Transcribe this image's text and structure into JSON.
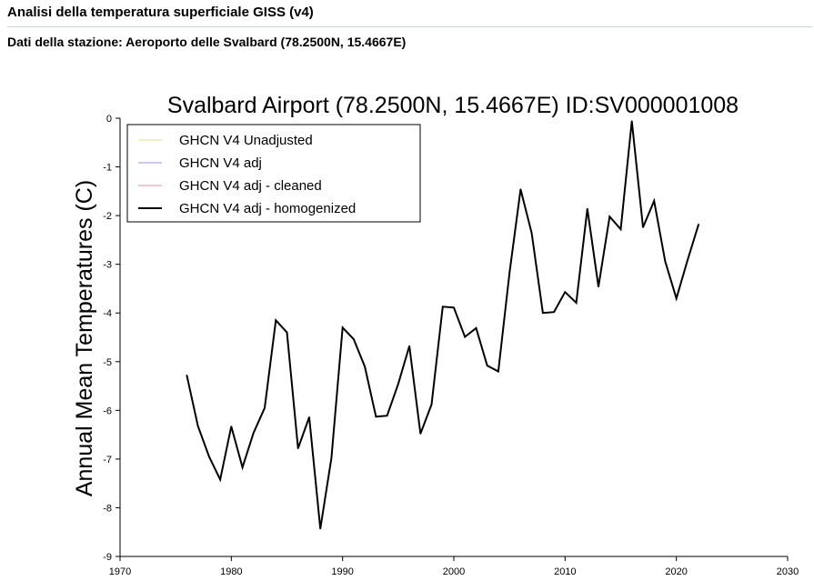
{
  "page": {
    "heading": "Analisi della temperatura superficiale GISS (v4)",
    "station_heading": "Dati della stazione: Aeroporto delle Svalbard (78.2500N, 15.4667E)"
  },
  "colors": {
    "unadjusted": "#f2efc0",
    "adj": "#c8c8f5",
    "adj_cleaned": "#f5c8c8",
    "homogenized": "#000000"
  },
  "chart_data": {
    "type": "line",
    "title": "Svalbard Airport (78.2500N, 15.4667E) ID:SV000001008",
    "xlabel": "",
    "ylabel": "Annual Mean Temperatures (C)",
    "xlim": [
      1970,
      2030
    ],
    "ylim": [
      -9,
      0
    ],
    "xticks": [
      1970,
      1980,
      1990,
      2000,
      2010,
      2020,
      2030
    ],
    "yticks": [
      0,
      -1,
      -2,
      -3,
      -4,
      -5,
      -6,
      -7,
      -8,
      -9
    ],
    "legend_position": "top-left",
    "legend": [
      {
        "name": "GHCN V4 Unadjusted",
        "color_key": "unadjusted"
      },
      {
        "name": "GHCN V4 adj",
        "color_key": "adj"
      },
      {
        "name": "GHCN V4 adj - cleaned",
        "color_key": "adj_cleaned"
      },
      {
        "name": "GHCN V4 adj - homogenized",
        "color_key": "homogenized"
      }
    ],
    "series": [
      {
        "name": "GHCN V4 adj - homogenized",
        "color_key": "homogenized",
        "x": [
          1976,
          1977,
          1978,
          1979,
          1980,
          1981,
          1982,
          1983,
          1984,
          1985,
          1986,
          1987,
          1988,
          1989,
          1990,
          1991,
          1992,
          1993,
          1994,
          1995,
          1996,
          1997,
          1998,
          1999,
          2000,
          2001,
          2002,
          2003,
          2004,
          2005,
          2006,
          2007,
          2008,
          2009,
          2010,
          2011,
          2012,
          2013,
          2014,
          2015,
          2016,
          2017,
          2018,
          2019,
          2020,
          2021,
          2022
        ],
        "y": [
          -5.28,
          -6.32,
          -6.95,
          -7.42,
          -6.33,
          -7.17,
          -6.46,
          -5.95,
          -4.15,
          -4.4,
          -6.78,
          -6.14,
          -8.43,
          -6.98,
          -4.3,
          -4.54,
          -5.1,
          -6.13,
          -6.11,
          -5.46,
          -4.68,
          -6.48,
          -5.88,
          -3.87,
          -3.89,
          -4.49,
          -4.31,
          -5.08,
          -5.2,
          -3.18,
          -1.46,
          -2.36,
          -4.0,
          -3.98,
          -3.57,
          -3.79,
          -1.86,
          -3.46,
          -2.02,
          -2.28,
          -0.06,
          -2.24,
          -1.7,
          -2.94,
          -3.7,
          -2.92,
          -2.18
        ]
      }
    ]
  }
}
